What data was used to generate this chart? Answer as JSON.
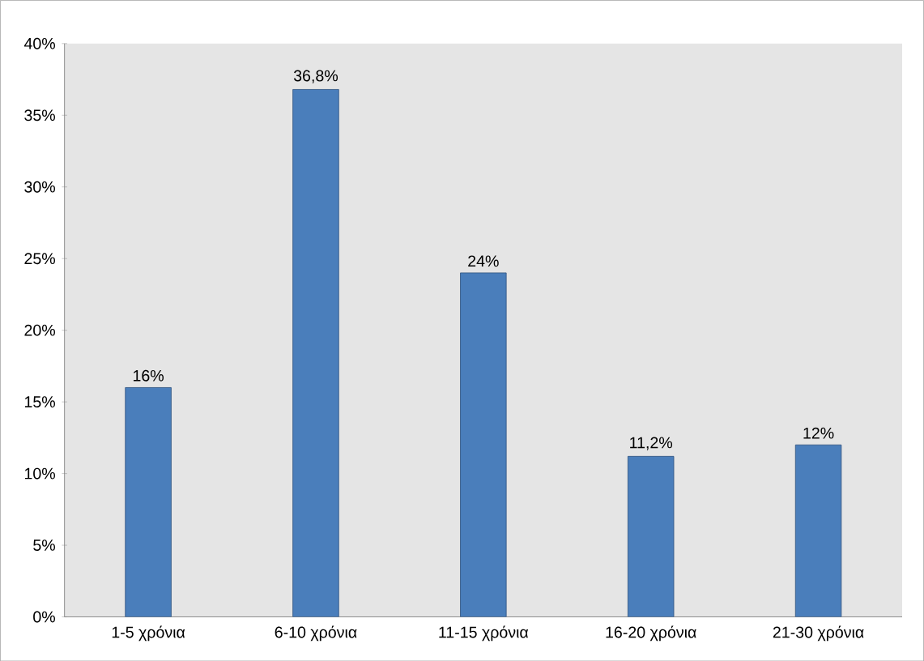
{
  "chart_data": {
    "type": "bar",
    "categories": [
      "1-5 χρόνια",
      "6-10 χρόνια",
      "11-15 χρόνια",
      "16-20 χρόνια",
      "21-30 χρόνια"
    ],
    "values": [
      16,
      36.8,
      24,
      11.2,
      12
    ],
    "value_labels": [
      "16%",
      "36,8%",
      "24%",
      "11,2%",
      "12%"
    ],
    "color": "#4a7ebb",
    "ylim": [
      0,
      40
    ],
    "yticks": [
      {
        "value": 0,
        "label": "0%"
      },
      {
        "value": 5,
        "label": "5%"
      },
      {
        "value": 10,
        "label": "10%"
      },
      {
        "value": 15,
        "label": "15%"
      },
      {
        "value": 20,
        "label": "20%"
      },
      {
        "value": 25,
        "label": "25%"
      },
      {
        "value": 30,
        "label": "30%"
      },
      {
        "value": 35,
        "label": "35%"
      },
      {
        "value": 40,
        "label": "40%"
      }
    ]
  }
}
